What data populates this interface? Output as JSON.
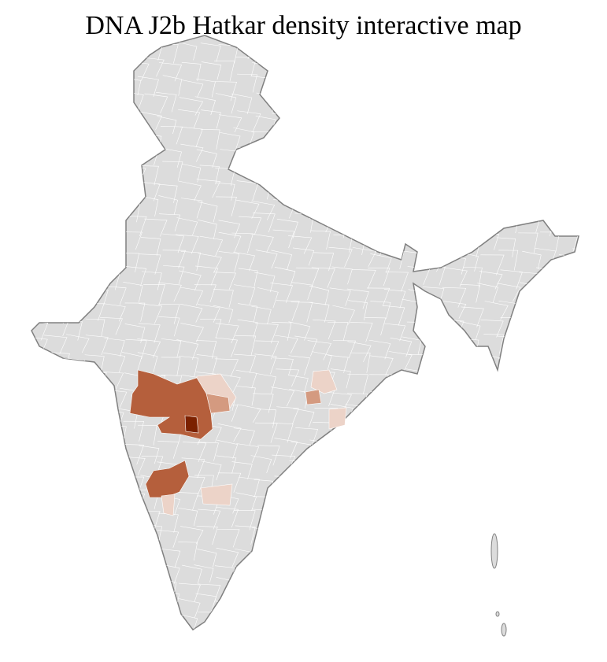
{
  "title": "DNA J2b Hatkar density interactive map",
  "colors": {
    "base_fill": "#dcdcdc",
    "outline": "#808080",
    "district_border": "#ffffff",
    "density_low": "#ecd3c8",
    "density_mid": "#d49a80",
    "density_high": "#b55f3c",
    "density_max": "#7b2100"
  }
}
